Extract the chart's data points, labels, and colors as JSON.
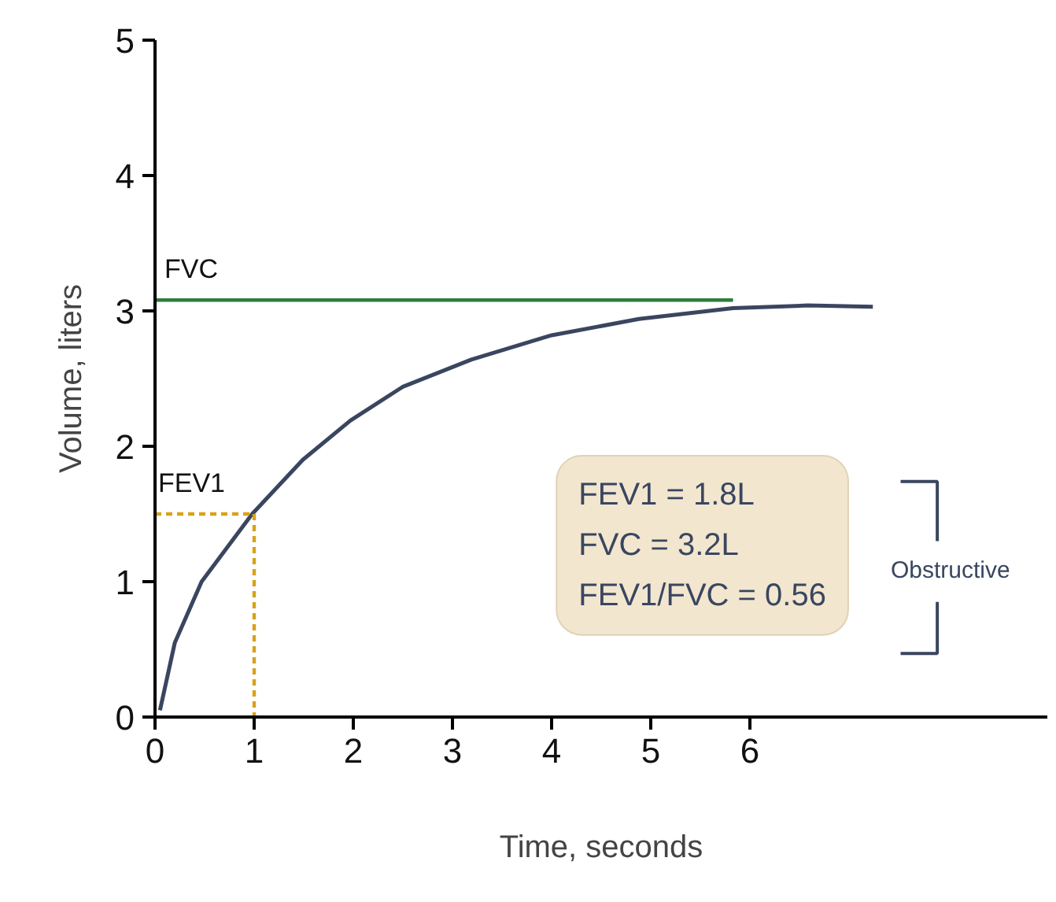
{
  "chart_data": {
    "type": "line",
    "xlabel": "Time, seconds",
    "ylabel": "Volume, liters",
    "xlim": [
      0,
      9
    ],
    "ylim": [
      0,
      5
    ],
    "xticks": [
      0,
      1,
      2,
      3,
      4,
      5,
      6
    ],
    "yticks": [
      0,
      1,
      2,
      3,
      4,
      5
    ],
    "grid": false,
    "series": [
      {
        "color": "#3a4660",
        "x": [
          0.05,
          0.2,
          0.47,
          0.98,
          1.49,
          1.97,
          2.5,
          3.19,
          4.0,
          4.88,
          5.83,
          6.58,
          7.24
        ],
        "values": [
          0.05,
          0.55,
          1.0,
          1.5,
          1.9,
          2.19,
          2.44,
          2.64,
          2.82,
          2.94,
          3.02,
          3.04,
          3.03
        ]
      },
      {
        "name": "FVC",
        "color": "#2e7d3e",
        "x": [
          0,
          5.83
        ],
        "values": [
          3.08,
          3.08
        ]
      },
      {
        "name": "FEV1",
        "color": "#d9a21b",
        "line_style": "dashed",
        "x": [
          0,
          1,
          1
        ],
        "values": [
          1.5,
          1.5,
          0
        ]
      }
    ],
    "annotations": [
      "FEV1 = 1.8L",
      "FVC = 3.2L",
      "FEV1/FVC = 0.56",
      "Obstructive"
    ]
  }
}
